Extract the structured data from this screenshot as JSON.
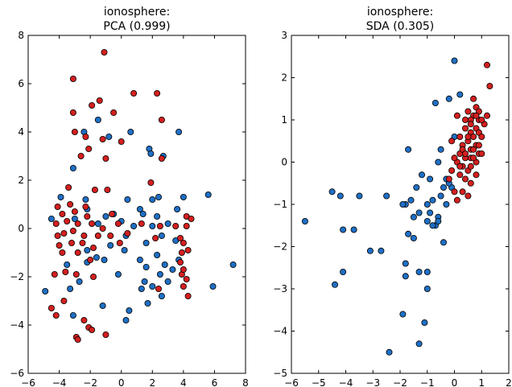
{
  "colors": {
    "class_a": "#1f6fc4",
    "class_b": "#d41f1f"
  },
  "chart_data": [
    {
      "type": "scatter",
      "title_line1": "ionosphere:",
      "title_line2": "PCA (0.999)",
      "xlim": [
        -6,
        8
      ],
      "ylim": [
        -6,
        8
      ],
      "xticks": [
        "−6",
        "−4",
        "−2",
        "0",
        "2",
        "4",
        "6",
        "8"
      ],
      "yticks": [
        "−6",
        "−4",
        "−2",
        "0",
        "2",
        "4",
        "6",
        "8"
      ],
      "grid": false,
      "series": [
        {
          "color": "#1f6fc4",
          "points": [
            [
              -1.5,
              4.5
            ],
            [
              -2.4,
              4.0
            ],
            [
              -0.8,
              3.8
            ],
            [
              0.6,
              4.0
            ],
            [
              1.8,
              3.3
            ],
            [
              3.7,
              4.0
            ],
            [
              -3.1,
              2.5
            ],
            [
              1.9,
              3.1
            ],
            [
              2.7,
              3.0
            ],
            [
              -3.9,
              1.3
            ],
            [
              -2.3,
              1.2
            ],
            [
              0.4,
              1.2
            ],
            [
              1.2,
              0.8
            ],
            [
              2.0,
              1.2
            ],
            [
              2.4,
              1.3
            ],
            [
              4.0,
              1.3
            ],
            [
              5.6,
              1.4
            ],
            [
              -2.2,
              0.8
            ],
            [
              -1.0,
              0.5
            ],
            [
              -0.5,
              0.6
            ],
            [
              0.0,
              0.3
            ],
            [
              1.4,
              0.6
            ],
            [
              2.3,
              0.5
            ],
            [
              3.6,
              0.8
            ],
            [
              -4.5,
              0.4
            ],
            [
              -3.0,
              0.4
            ],
            [
              -1.5,
              0.2
            ],
            [
              0.8,
              0.1
            ],
            [
              2.0,
              0.1
            ],
            [
              3.0,
              0.2
            ],
            [
              0.3,
              -0.3
            ],
            [
              1.6,
              -0.6
            ],
            [
              2.6,
              -0.3
            ],
            [
              3.5,
              -0.5
            ],
            [
              -2.2,
              -0.9
            ],
            [
              -1.6,
              -1.2
            ],
            [
              -0.7,
              -0.7
            ],
            [
              1.2,
              -1.3
            ],
            [
              2.3,
              -1.1
            ],
            [
              2.8,
              -1.5
            ],
            [
              3.7,
              -1.3
            ],
            [
              -3.5,
              -1.5
            ],
            [
              -2.2,
              -1.4
            ],
            [
              -1.1,
              -1.3
            ],
            [
              0.2,
              -0.9
            ],
            [
              1.6,
              -1.6
            ],
            [
              3.3,
              -1.7
            ],
            [
              -3.3,
              -2.5
            ],
            [
              -2.7,
              -2.2
            ],
            [
              -0.2,
              -1.9
            ],
            [
              1.5,
              -2.2
            ],
            [
              2.5,
              -1.9
            ],
            [
              3.0,
              -2.2
            ],
            [
              -4.9,
              -2.6
            ],
            [
              1.3,
              -2.5
            ],
            [
              2.0,
              -2.4
            ],
            [
              5.9,
              -2.4
            ],
            [
              7.2,
              -1.5
            ],
            [
              -1.2,
              -3.2
            ],
            [
              0.5,
              -3.4
            ],
            [
              1.7,
              -3.1
            ],
            [
              2.6,
              -2.8
            ],
            [
              -3.1,
              -3.6
            ],
            [
              0.3,
              -3.8
            ]
          ]
        },
        {
          "color": "#d41f1f",
          "points": [
            [
              -1.1,
              7.3
            ],
            [
              -3.1,
              6.2
            ],
            [
              0.8,
              5.6
            ],
            [
              2.3,
              5.6
            ],
            [
              -1.4,
              5.3
            ],
            [
              -1.9,
              5.1
            ],
            [
              -0.5,
              4.8
            ],
            [
              -3.1,
              4.8
            ],
            [
              2.6,
              4.5
            ],
            [
              -3.0,
              4.0
            ],
            [
              -2.3,
              3.8
            ],
            [
              -1.2,
              3.7
            ],
            [
              0.0,
              3.6
            ],
            [
              -2.1,
              3.3
            ],
            [
              -2.6,
              3.0
            ],
            [
              -1.0,
              2.9
            ],
            [
              2.6,
              2.9
            ],
            [
              -3.4,
              1.7
            ],
            [
              -1.7,
              1.6
            ],
            [
              -0.9,
              1.6
            ],
            [
              1.9,
              1.9
            ],
            [
              -4.1,
              0.9
            ],
            [
              -3.3,
              1.0
            ],
            [
              -2.3,
              0.9
            ],
            [
              -3.8,
              0.6
            ],
            [
              -3.0,
              0.7
            ],
            [
              -2.2,
              0.5
            ],
            [
              -0.6,
              0.6
            ],
            [
              4.2,
              0.5
            ],
            [
              4.5,
              0.4
            ],
            [
              -4.2,
              0.2
            ],
            [
              -3.5,
              0.3
            ],
            [
              -2.8,
              0.2
            ],
            [
              -1.9,
              0.2
            ],
            [
              -1.2,
              0.0
            ],
            [
              -0.2,
              0.2
            ],
            [
              1.3,
              0.2
            ],
            [
              2.5,
              0.1
            ],
            [
              3.5,
              0.1
            ],
            [
              4.2,
              0.1
            ],
            [
              -4.1,
              -0.3
            ],
            [
              -3.7,
              -0.2
            ],
            [
              -3.1,
              -0.1
            ],
            [
              -2.4,
              -0.3
            ],
            [
              -1.5,
              -0.3
            ],
            [
              -0.7,
              -0.3
            ],
            [
              0.4,
              -0.2
            ],
            [
              2.2,
              -0.4
            ],
            [
              3.8,
              -0.4
            ],
            [
              -4.0,
              -0.7
            ],
            [
              -3.2,
              -0.6
            ],
            [
              -2.5,
              -0.6
            ],
            [
              -1.8,
              -0.8
            ],
            [
              4.0,
              -0.6
            ],
            [
              -3.8,
              -1.0
            ],
            [
              -2.8,
              -1.0
            ],
            [
              -2.0,
              -1.3
            ],
            [
              3.9,
              -1.0
            ],
            [
              4.3,
              -0.9
            ],
            [
              -4.3,
              -1.9
            ],
            [
              -3.6,
              -1.8
            ],
            [
              -2.9,
              -1.9
            ],
            [
              -1.8,
              -2.0
            ],
            [
              3.9,
              -1.9
            ],
            [
              4.2,
              -2.1
            ],
            [
              -4.5,
              -3.3
            ],
            [
              -3.7,
              -3.0
            ],
            [
              -4.2,
              -3.6
            ],
            [
              -2.4,
              -3.8
            ],
            [
              -2.1,
              -4.1
            ],
            [
              -1.9,
              -4.2
            ],
            [
              -1.0,
              -4.4
            ],
            [
              -2.9,
              -4.5
            ],
            [
              -2.8,
              -4.6
            ],
            [
              2.4,
              -2.5
            ],
            [
              4.0,
              -2.4
            ],
            [
              4.3,
              -2.8
            ],
            [
              3.8,
              -1.4
            ],
            [
              4.0,
              -1.7
            ],
            [
              -0.1,
              -0.6
            ]
          ]
        }
      ]
    },
    {
      "type": "scatter",
      "title_line1": "ionosphere:",
      "title_line2": "SDA (0.305)",
      "xlim": [
        -6,
        2
      ],
      "ylim": [
        -5,
        3
      ],
      "xticks": [
        "−6",
        "−5",
        "−4",
        "−3",
        "−2",
        "−1",
        "0",
        "1",
        "2"
      ],
      "yticks": [
        "−5",
        "−4",
        "−3",
        "−2",
        "−1",
        "0",
        "1",
        "2",
        "3"
      ],
      "grid": false,
      "series": [
        {
          "color": "#1f6fc4",
          "points": [
            [
              0.0,
              2.4
            ],
            [
              0.2,
              1.6
            ],
            [
              -0.2,
              1.5
            ],
            [
              -0.7,
              1.4
            ],
            [
              0.0,
              0.6
            ],
            [
              -0.5,
              0.3
            ],
            [
              -1.7,
              0.3
            ],
            [
              -0.6,
              0.0
            ],
            [
              -0.3,
              -0.4
            ],
            [
              -0.1,
              -0.6
            ],
            [
              -0.2,
              -0.5
            ],
            [
              -0.9,
              -0.4
            ],
            [
              -1.2,
              -0.3
            ],
            [
              -1.4,
              -0.6
            ],
            [
              -4.5,
              -0.7
            ],
            [
              -4.2,
              -0.8
            ],
            [
              -3.5,
              -0.8
            ],
            [
              -2.5,
              -0.8
            ],
            [
              -1.6,
              -0.9
            ],
            [
              -1.8,
              -1.0
            ],
            [
              -1.9,
              -1.0
            ],
            [
              -0.8,
              -0.9
            ],
            [
              -0.5,
              -0.8
            ],
            [
              -0.3,
              -1.0
            ],
            [
              -5.5,
              -1.4
            ],
            [
              -1.3,
              -1.2
            ],
            [
              -1.5,
              -1.3
            ],
            [
              -0.9,
              -1.2
            ],
            [
              -0.6,
              -1.3
            ],
            [
              -1.0,
              -1.4
            ],
            [
              -0.7,
              -1.5
            ],
            [
              -0.8,
              -1.5
            ],
            [
              -0.6,
              -1.4
            ],
            [
              -4.1,
              -1.6
            ],
            [
              -3.7,
              -1.6
            ],
            [
              -1.7,
              -1.7
            ],
            [
              -1.5,
              -1.8
            ],
            [
              -0.4,
              -1.9
            ],
            [
              -3.1,
              -2.1
            ],
            [
              -2.7,
              -2.1
            ],
            [
              -1.8,
              -2.4
            ],
            [
              -1.3,
              -2.6
            ],
            [
              -1.0,
              -2.6
            ],
            [
              -4.1,
              -2.6
            ],
            [
              -4.4,
              -2.9
            ],
            [
              -1.0,
              -3.0
            ],
            [
              -1.8,
              -2.7
            ],
            [
              -1.9,
              -3.6
            ],
            [
              -1.1,
              -3.8
            ],
            [
              -1.3,
              -4.3
            ],
            [
              -2.4,
              -4.5
            ],
            [
              -0.4,
              -0.6
            ],
            [
              -1.0,
              -1.0
            ]
          ]
        },
        {
          "color": "#d41f1f",
          "points": [
            [
              1.2,
              2.3
            ],
            [
              1.3,
              1.8
            ],
            [
              0.7,
              1.1
            ],
            [
              0.8,
              1.3
            ],
            [
              0.6,
              1.0
            ],
            [
              0.9,
              1.0
            ],
            [
              0.4,
              0.8
            ],
            [
              0.6,
              0.7
            ],
            [
              0.8,
              0.8
            ],
            [
              0.9,
              0.7
            ],
            [
              1.0,
              0.6
            ],
            [
              0.5,
              0.5
            ],
            [
              0.7,
              0.6
            ],
            [
              0.3,
              0.4
            ],
            [
              0.6,
              0.3
            ],
            [
              0.8,
              0.4
            ],
            [
              0.9,
              0.2
            ],
            [
              0.2,
              0.2
            ],
            [
              0.4,
              0.1
            ],
            [
              0.6,
              0.1
            ],
            [
              0.8,
              0.0
            ],
            [
              0.1,
              0.0
            ],
            [
              0.3,
              -0.1
            ],
            [
              0.5,
              -0.2
            ],
            [
              0.7,
              0.1
            ],
            [
              1.0,
              0.2
            ],
            [
              -0.1,
              -0.2
            ],
            [
              0.2,
              -0.3
            ],
            [
              0.4,
              -0.4
            ],
            [
              0.6,
              -0.5
            ],
            [
              0.0,
              -0.7
            ],
            [
              0.3,
              -0.7
            ],
            [
              0.5,
              -0.8
            ],
            [
              0.8,
              -0.3
            ],
            [
              0.1,
              -0.9
            ],
            [
              -0.2,
              -0.4
            ],
            [
              1.1,
              0.9
            ],
            [
              1.2,
              1.1
            ],
            [
              0.5,
              1.2
            ],
            [
              0.7,
              1.5
            ],
            [
              0.9,
              1.2
            ],
            [
              0.4,
              1.0
            ],
            [
              0.2,
              0.6
            ],
            [
              0.6,
              0.9
            ],
            [
              1.0,
              1.0
            ],
            [
              0.8,
              1.1
            ],
            [
              0.3,
              0.3
            ],
            [
              0.5,
              0.6
            ],
            [
              0.9,
              0.4
            ],
            [
              0.7,
              0.3
            ],
            [
              0.2,
              -0.1
            ],
            [
              0.0,
              0.1
            ],
            [
              0.4,
              0.2
            ],
            [
              0.6,
              -0.1
            ],
            [
              0.1,
              1.1
            ],
            [
              -0.1,
              0.5
            ]
          ]
        }
      ]
    }
  ]
}
